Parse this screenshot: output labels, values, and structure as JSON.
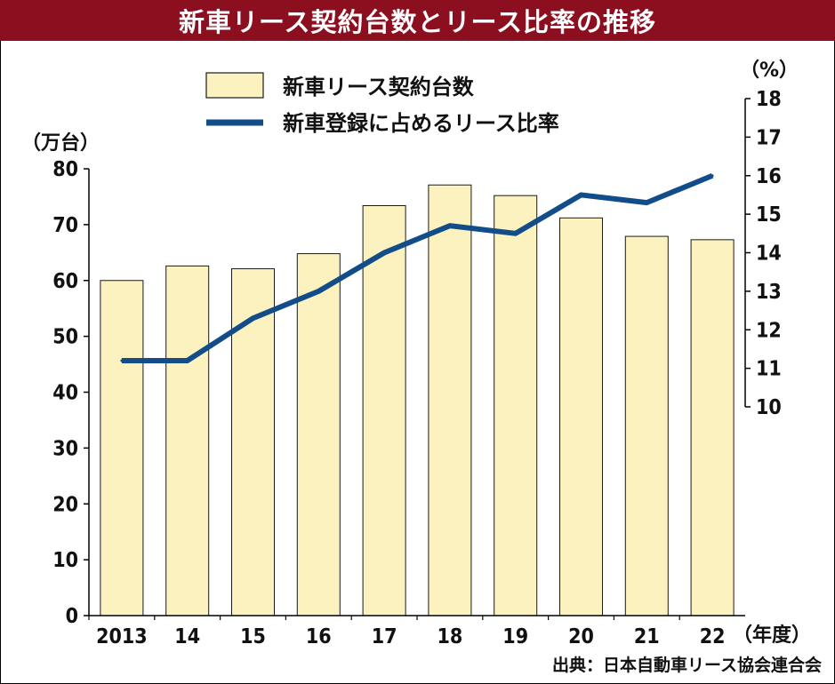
{
  "title": "新車リース契約台数とリース比率の推移",
  "colors": {
    "title_bg": "#8b0f1e",
    "bar_fill": "#fbf2bf",
    "bar_stroke": "#1a1a1a",
    "line": "#124d8a"
  },
  "legend": {
    "bars": "新車リース契約台数",
    "line": "新車登録に占めるリース比率"
  },
  "axis_units": {
    "left": "（万台）",
    "right": "（%）",
    "x": "（年度）"
  },
  "source": "出典：日本自動車リース協会連合会",
  "chart_data": {
    "type": "bar",
    "categories": [
      "2013",
      "14",
      "15",
      "16",
      "17",
      "18",
      "19",
      "20",
      "21",
      "22"
    ],
    "series": [
      {
        "name": "新車リース契約台数",
        "type": "bar",
        "axis": "left",
        "values": [
          60.0,
          62.6,
          62.1,
          64.8,
          73.4,
          77.1,
          75.2,
          71.2,
          67.9,
          67.3
        ]
      },
      {
        "name": "新車登録に占めるリース比率",
        "type": "line",
        "axis": "right",
        "values": [
          11.2,
          11.2,
          12.3,
          13.0,
          14.0,
          14.7,
          14.5,
          15.5,
          15.3,
          16.0
        ]
      }
    ],
    "left_axis": {
      "ylim": [
        0,
        80
      ],
      "ticks": [
        0,
        10,
        20,
        30,
        40,
        50,
        60,
        70,
        80
      ]
    },
    "right_axis": {
      "ylim": [
        10,
        18
      ],
      "ticks": [
        10,
        11,
        12,
        13,
        14,
        15,
        16,
        17,
        18
      ]
    },
    "grid": false,
    "legend_position": "top-left"
  }
}
